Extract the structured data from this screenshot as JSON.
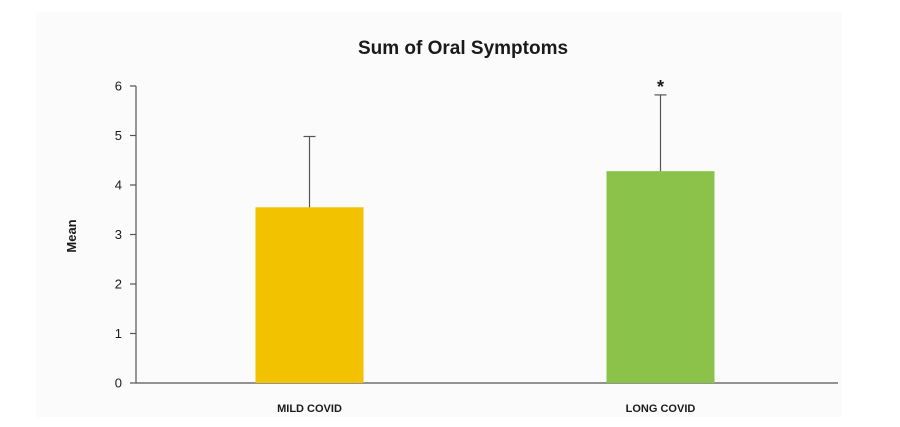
{
  "chart_data": {
    "type": "bar",
    "title": "Sum of Oral Symptoms",
    "ylabel": "Mean",
    "xlabel": "",
    "categories": [
      "MILD COVID",
      "LONG COVID"
    ],
    "values": [
      3.55,
      4.28
    ],
    "error_upper": [
      4.98,
      5.82
    ],
    "significance": [
      "",
      "*"
    ],
    "colors": [
      "#f2c200",
      "#8bc34a"
    ],
    "ylim": [
      0,
      6
    ],
    "yticks": [
      0,
      1,
      2,
      3,
      4,
      5,
      6
    ],
    "yticklabels": [
      "0",
      "1",
      "2",
      "3",
      "4",
      "5",
      "6"
    ],
    "grid": false,
    "legend": "none"
  }
}
